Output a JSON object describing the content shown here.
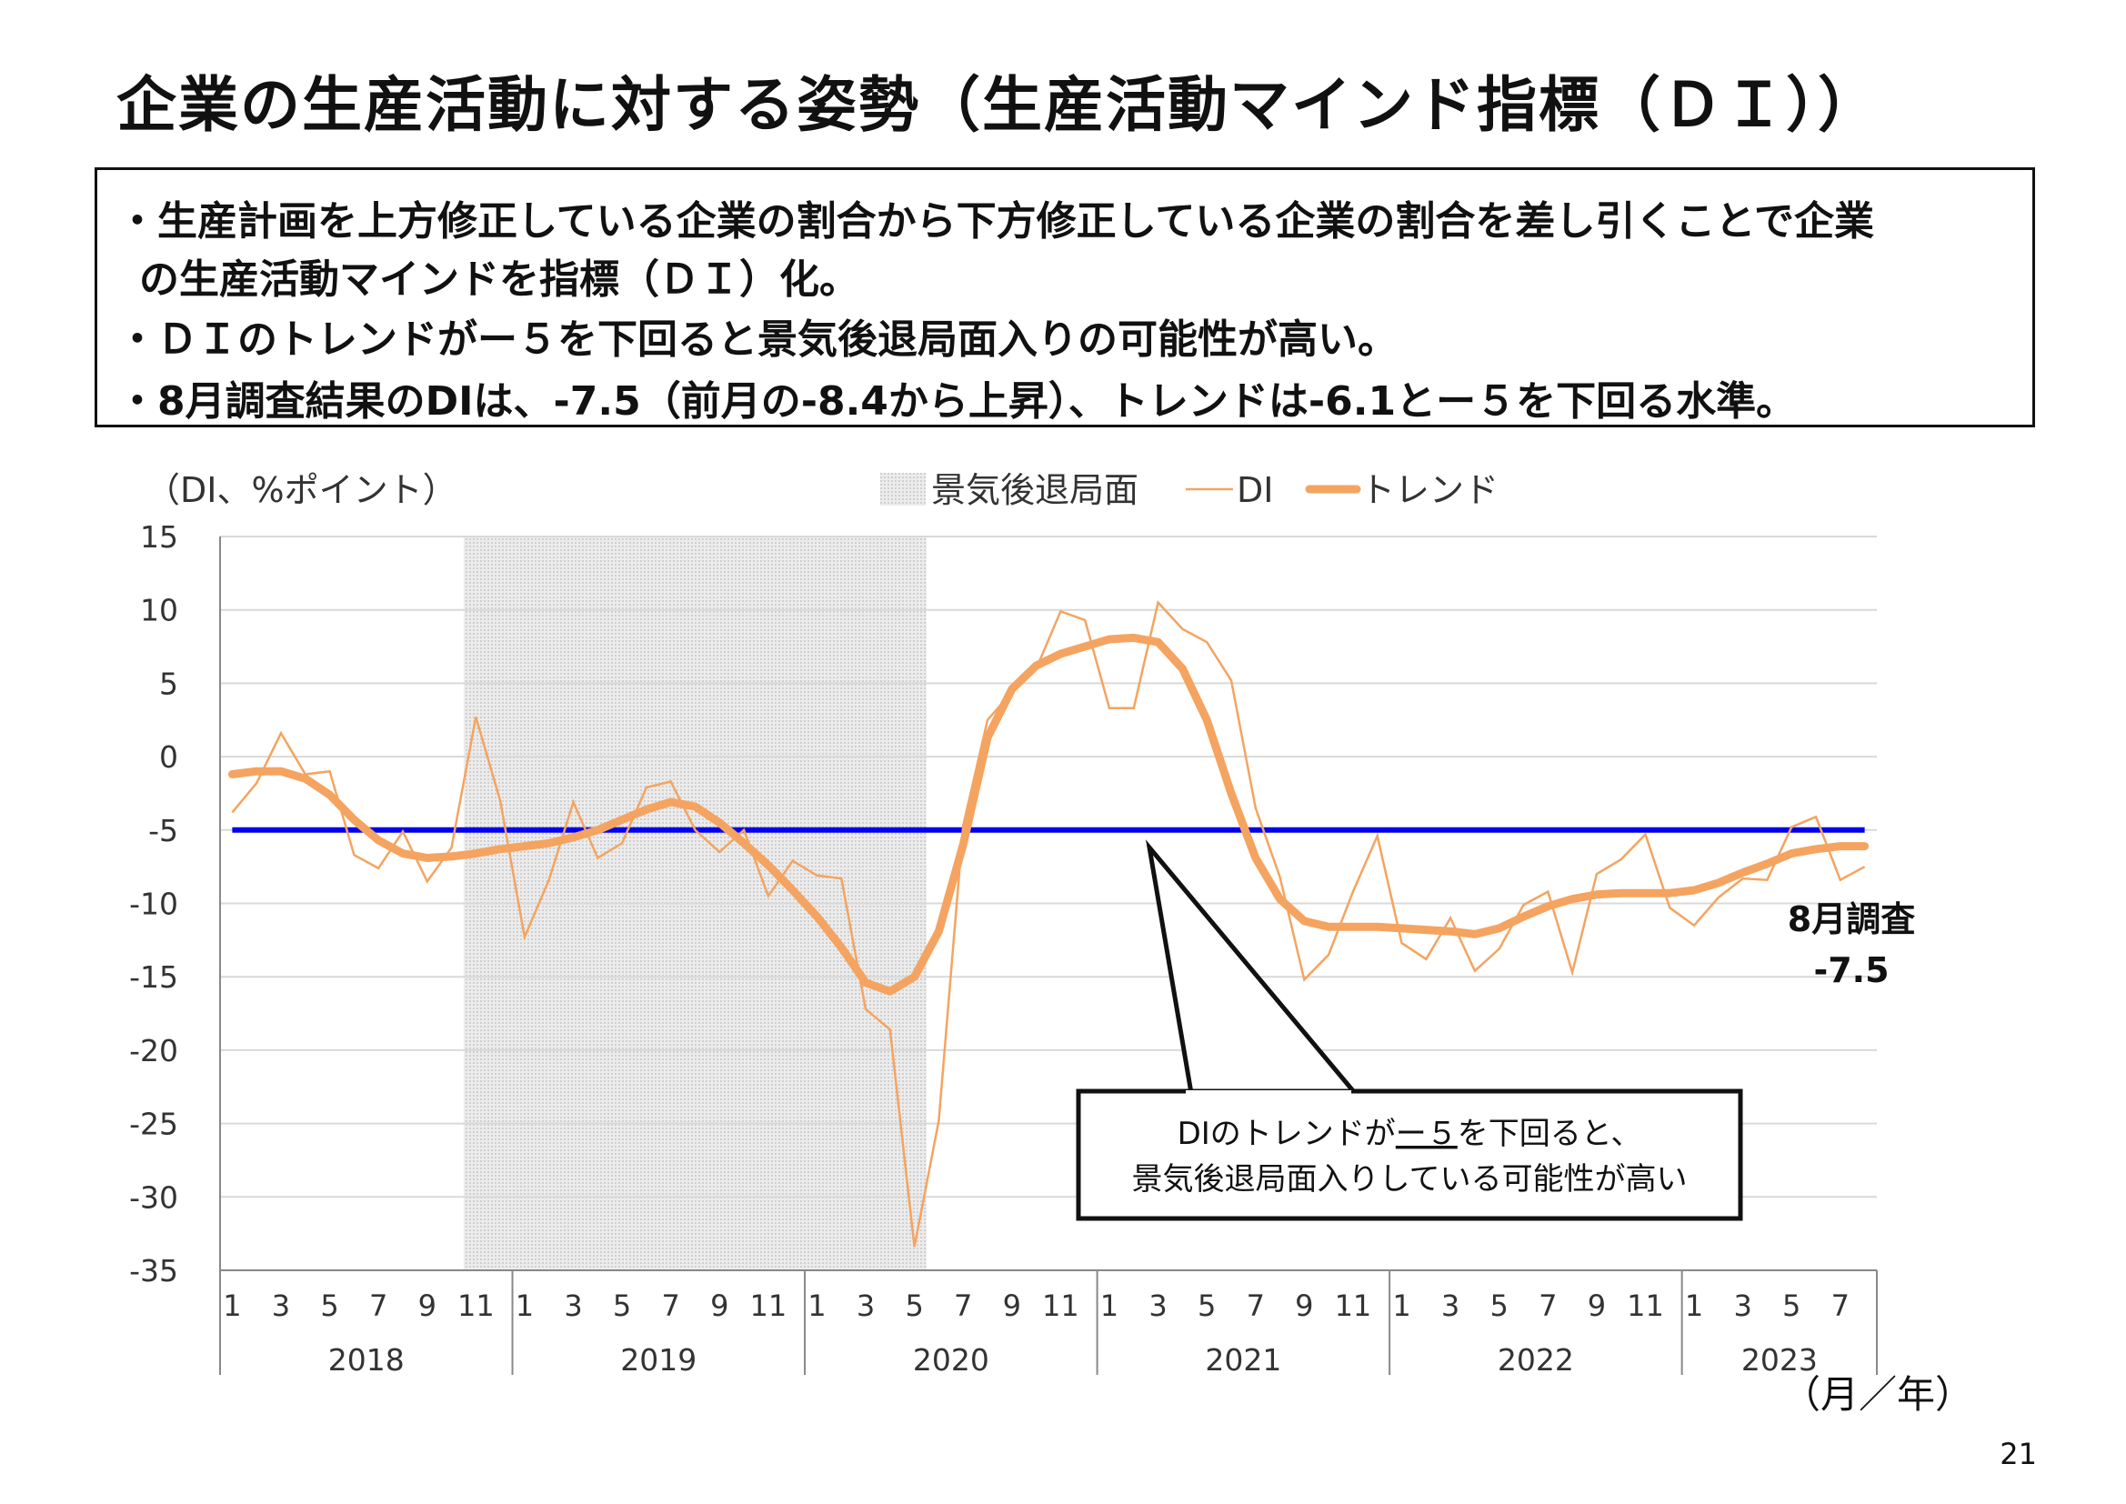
{
  "title": "企業の生産活動に対する姿勢（生産活動マインド指標（ＤＩ））",
  "notes": [
    {
      "line1": "・生産計画を上方修正している企業の割合から下方修正している企業の割合を差し引くことで企業",
      "line2": "の生産活動マインドを指標（ＤＩ）化。"
    },
    {
      "line1": "・ＤＩのトレンドがー５を下回ると景気後退局面入りの可能性が高い。",
      "line2": ""
    },
    {
      "line1": "・8月調査結果のDIは、-7.5（前月の-8.4から上昇）、トレンドは-6.1とー５を下回る水準。",
      "line2": ""
    }
  ],
  "page_number": "21",
  "chart_data": {
    "type": "line",
    "ylabel": "（DI、%ポイント）",
    "xlabel": "（月／年）",
    "ylim": [
      -35,
      15
    ],
    "yticks": [
      15,
      10,
      5,
      0,
      -5,
      -10,
      -15,
      -20,
      -25,
      -30,
      -35
    ],
    "month_tick_labels": [
      "1",
      "3",
      "5",
      "7",
      "9",
      "11"
    ],
    "years": [
      "2018",
      "2019",
      "2020",
      "2021",
      "2022",
      "2023"
    ],
    "year_month_counts": [
      12,
      12,
      12,
      12,
      12,
      8
    ],
    "x_start": "2018-01",
    "recession": {
      "name": "景気後退局面",
      "start": "2018-11",
      "end": "2020-05",
      "color": "#d9d9d9"
    },
    "series": [
      {
        "name": "DI",
        "color": "#f4a460",
        "values": [
          -3.8,
          -1.8,
          1.6,
          -1.2,
          -1.0,
          -6.7,
          -7.6,
          -5.1,
          -8.5,
          -6.2,
          2.7,
          -3.0,
          -12.3,
          -8.4,
          -3.1,
          -6.9,
          -5.9,
          -2.1,
          -1.7,
          -5.0,
          -6.5,
          -5.0,
          -9.5,
          -7.1,
          -8.1,
          -8.3,
          -17.2,
          -18.6,
          -33.4,
          -24.8,
          -4.7,
          2.5,
          4.4,
          6.0,
          9.9,
          9.3,
          3.3,
          3.3,
          10.5,
          8.7,
          7.8,
          5.2,
          -3.5,
          -8.2,
          -15.2,
          -13.5,
          -9.2,
          -5.4,
          -12.7,
          -13.8,
          -11.0,
          -14.6,
          -13.1,
          -10.1,
          -9.2,
          -14.7,
          -8.0,
          -7.0,
          -5.3,
          -10.3,
          -11.5,
          -9.6,
          -8.3,
          -8.4,
          -4.8,
          -4.1,
          -8.4,
          -7.5
        ]
      },
      {
        "name": "トレンド",
        "color": "#f4a460",
        "values": [
          -1.2,
          -1.0,
          -1.0,
          -1.5,
          -2.6,
          -4.3,
          -5.7,
          -6.6,
          -6.9,
          -6.8,
          -6.6,
          -6.3,
          -6.1,
          -5.9,
          -5.5,
          -5.0,
          -4.3,
          -3.6,
          -3.1,
          -3.4,
          -4.5,
          -5.9,
          -7.4,
          -9.1,
          -10.9,
          -13.0,
          -15.4,
          -16.0,
          -15.0,
          -11.9,
          -6.0,
          1.3,
          4.6,
          6.2,
          7.0,
          7.5,
          8.0,
          8.1,
          7.8,
          6.0,
          2.5,
          -2.5,
          -6.9,
          -9.7,
          -11.2,
          -11.6,
          -11.6,
          -11.6,
          -11.7,
          -11.8,
          -11.9,
          -12.1,
          -11.7,
          -10.9,
          -10.2,
          -9.7,
          -9.4,
          -9.3,
          -9.3,
          -9.3,
          -9.1,
          -8.6,
          -7.9,
          -7.3,
          -6.6,
          -6.3,
          -6.1,
          -6.1
        ]
      }
    ],
    "threshold": {
      "value": -5,
      "color": "#0000ee"
    },
    "annotation_latest": {
      "label": "8月調査",
      "value": "-7.5"
    },
    "callout": "DIのトレンドがー５を下回ると、\n景気後退局面入りしている可能性が高い",
    "callout_underlined": "ー５"
  }
}
